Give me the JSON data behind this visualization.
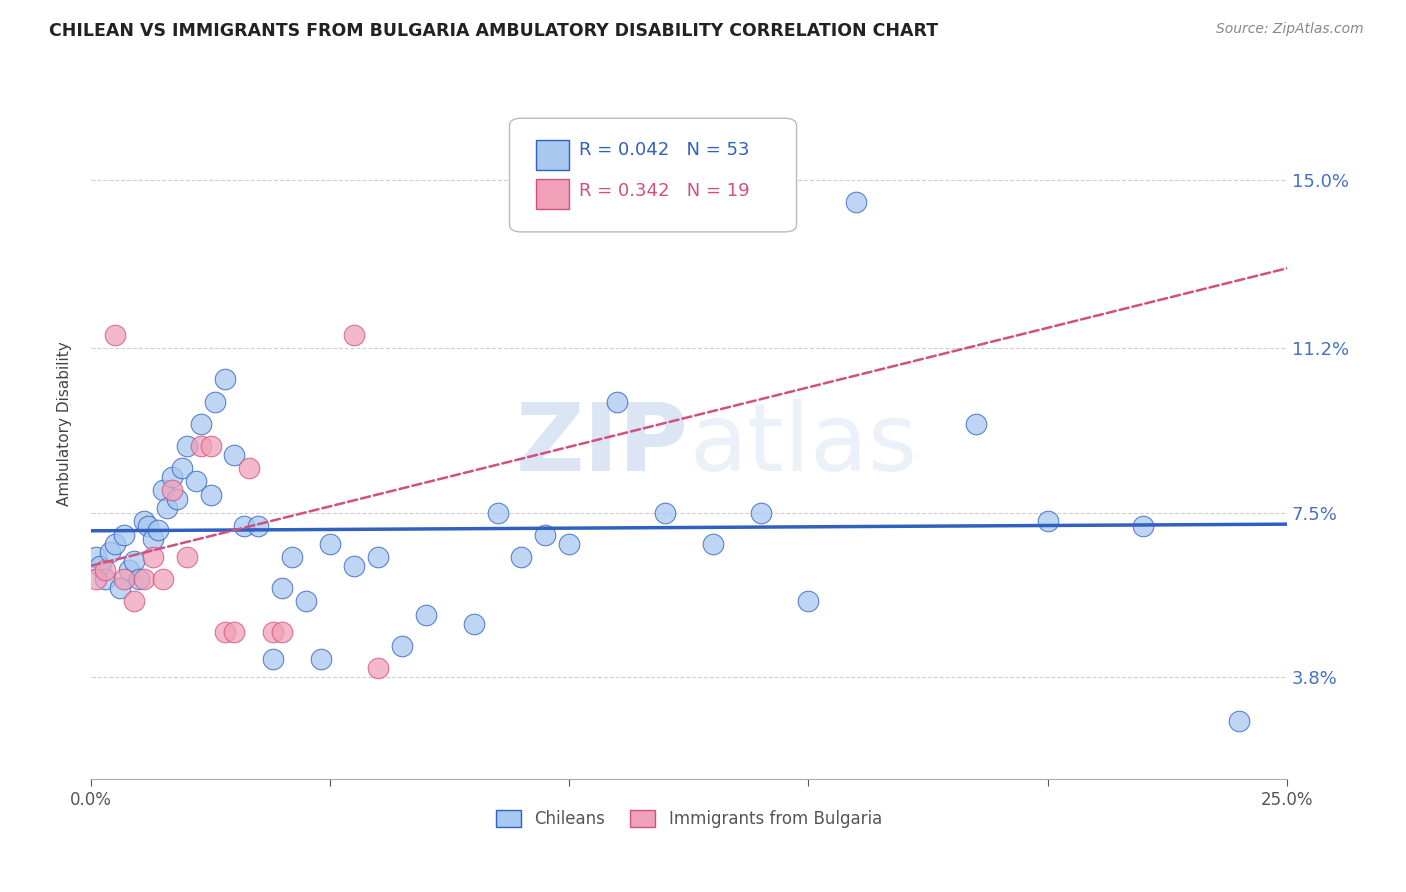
{
  "title": "CHILEAN VS IMMIGRANTS FROM BULGARIA AMBULATORY DISABILITY CORRELATION CHART",
  "source": "Source: ZipAtlas.com",
  "ylabel": "Ambulatory Disability",
  "ytick_labels": [
    "15.0%",
    "11.2%",
    "7.5%",
    "3.8%"
  ],
  "ytick_values": [
    0.15,
    0.112,
    0.075,
    0.038
  ],
  "xlim": [
    0.0,
    0.25
  ],
  "ylim": [
    0.015,
    0.175
  ],
  "legend1_R": "0.042",
  "legend1_N": "53",
  "legend2_R": "0.342",
  "legend2_N": "19",
  "color_chilean": "#A8C8F0",
  "color_bulgaria": "#F0A0B8",
  "color_line_chilean": "#3060C0",
  "color_line_bulgaria": "#D05080",
  "chilean_x": [
    0.001,
    0.002,
    0.003,
    0.004,
    0.005,
    0.006,
    0.007,
    0.008,
    0.009,
    0.01,
    0.011,
    0.012,
    0.013,
    0.014,
    0.015,
    0.016,
    0.017,
    0.018,
    0.019,
    0.02,
    0.022,
    0.023,
    0.025,
    0.026,
    0.028,
    0.03,
    0.032,
    0.035,
    0.038,
    0.04,
    0.042,
    0.045,
    0.048,
    0.05,
    0.055,
    0.06,
    0.065,
    0.07,
    0.08,
    0.085,
    0.09,
    0.095,
    0.1,
    0.11,
    0.12,
    0.13,
    0.14,
    0.15,
    0.16,
    0.185,
    0.2,
    0.22,
    0.24
  ],
  "chilean_y": [
    0.065,
    0.063,
    0.06,
    0.066,
    0.068,
    0.058,
    0.07,
    0.062,
    0.064,
    0.06,
    0.073,
    0.072,
    0.069,
    0.071,
    0.08,
    0.076,
    0.083,
    0.078,
    0.085,
    0.09,
    0.082,
    0.095,
    0.079,
    0.1,
    0.105,
    0.088,
    0.072,
    0.072,
    0.042,
    0.058,
    0.065,
    0.055,
    0.042,
    0.068,
    0.063,
    0.065,
    0.045,
    0.052,
    0.05,
    0.075,
    0.065,
    0.07,
    0.068,
    0.1,
    0.075,
    0.068,
    0.075,
    0.055,
    0.145,
    0.095,
    0.073,
    0.072,
    0.028
  ],
  "bulgaria_x": [
    0.001,
    0.003,
    0.005,
    0.007,
    0.009,
    0.011,
    0.013,
    0.015,
    0.017,
    0.02,
    0.023,
    0.025,
    0.028,
    0.03,
    0.033,
    0.038,
    0.04,
    0.055,
    0.06
  ],
  "bulgaria_y": [
    0.06,
    0.062,
    0.115,
    0.06,
    0.055,
    0.06,
    0.065,
    0.06,
    0.08,
    0.065,
    0.09,
    0.09,
    0.048,
    0.048,
    0.085,
    0.048,
    0.048,
    0.115,
    0.04
  ],
  "watermark_zip": "ZIP",
  "watermark_atlas": "atlas",
  "background_color": "#FFFFFF",
  "grid_color": "#BBBBBB"
}
